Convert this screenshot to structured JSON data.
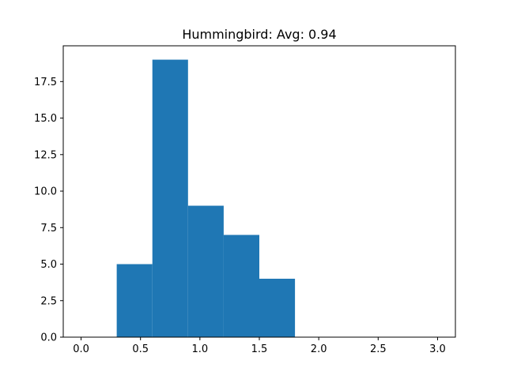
{
  "chart_data": {
    "type": "bar",
    "title": "Hummingbird: Avg: 0.94",
    "xlabel": "",
    "ylabel": "",
    "bins": [
      {
        "x0": 0.3,
        "x1": 0.6,
        "value": 5
      },
      {
        "x0": 0.6,
        "x1": 0.9,
        "value": 19
      },
      {
        "x0": 0.9,
        "x1": 1.2,
        "value": 9
      },
      {
        "x0": 1.2,
        "x1": 1.5,
        "value": 7
      },
      {
        "x0": 1.5,
        "x1": 1.8,
        "value": 4
      }
    ],
    "xlim": [
      -0.15,
      3.15
    ],
    "ylim": [
      0,
      19.95
    ],
    "x_ticks": [
      0.0,
      0.5,
      1.0,
      1.5,
      2.0,
      2.5,
      3.0
    ],
    "x_tick_labels": [
      "0.0",
      "0.5",
      "1.0",
      "1.5",
      "2.0",
      "2.5",
      "3.0"
    ],
    "y_ticks": [
      0.0,
      2.5,
      5.0,
      7.5,
      10.0,
      12.5,
      15.0,
      17.5
    ],
    "y_tick_labels": [
      "0.0",
      "2.5",
      "5.0",
      "7.5",
      "10.0",
      "12.5",
      "15.0",
      "17.5"
    ],
    "bar_color": "#1f77b4",
    "grid": false,
    "legend": "none"
  }
}
